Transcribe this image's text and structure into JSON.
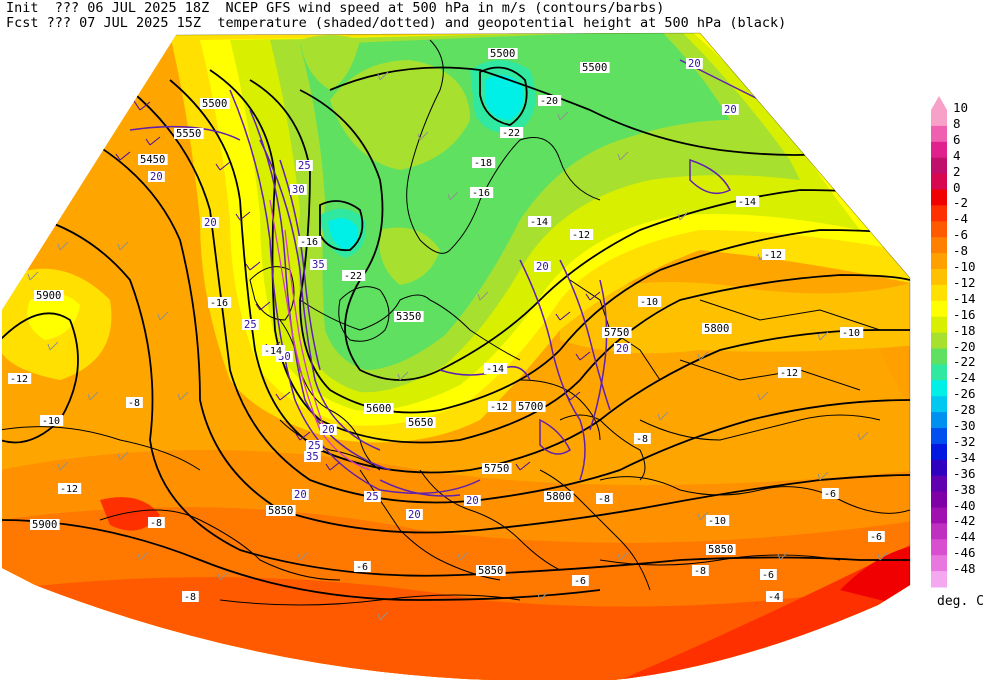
{
  "header": {
    "line1": "Init  ??? 06 JUL 2025 18Z  NCEP GFS wind speed at 500 hPa in m/s (contours/barbs)",
    "line2": "Fcst ??? 07 JUL 2025 15Z  temperature (shaded/dotted) and geopotential height at 500 hPa (black)"
  },
  "colorbar": {
    "units": "deg. C",
    "levels": [
      {
        "label": "10",
        "color": "#f7a0c8"
      },
      {
        "label": "8",
        "color": "#f060b0"
      },
      {
        "label": "6",
        "color": "#e0208c"
      },
      {
        "label": "4",
        "color": "#c0106c"
      },
      {
        "label": "2",
        "color": "#d80850"
      },
      {
        "label": "0",
        "color": "#f00000"
      },
      {
        "label": "-2",
        "color": "#ff3000"
      },
      {
        "label": "-4",
        "color": "#ff5a00"
      },
      {
        "label": "-6",
        "color": "#ff8000"
      },
      {
        "label": "-8",
        "color": "#ffa000"
      },
      {
        "label": "-10",
        "color": "#ffc000"
      },
      {
        "label": "-12",
        "color": "#ffe000"
      },
      {
        "label": "-14",
        "color": "#ffff00"
      },
      {
        "label": "-16",
        "color": "#d8f000"
      },
      {
        "label": "-18",
        "color": "#a8e030"
      },
      {
        "label": "-20",
        "color": "#60e060"
      },
      {
        "label": "-22",
        "color": "#30e8a0"
      },
      {
        "label": "-24",
        "color": "#00f0e8"
      },
      {
        "label": "-26",
        "color": "#00c8f0"
      },
      {
        "label": "-28",
        "color": "#0090f0"
      },
      {
        "label": "-30",
        "color": "#0050f0"
      },
      {
        "label": "-32",
        "color": "#0018e0"
      },
      {
        "label": "-34",
        "color": "#3000c0"
      },
      {
        "label": "-36",
        "color": "#6000b0"
      },
      {
        "label": "-38",
        "color": "#8000a8"
      },
      {
        "label": "-40",
        "color": "#a010b0"
      },
      {
        "label": "-42",
        "color": "#c030c0"
      },
      {
        "label": "-44",
        "color": "#d850d0"
      },
      {
        "label": "-46",
        "color": "#e878e0"
      },
      {
        "label": "-48",
        "color": "#f4a8f0"
      }
    ]
  },
  "map_labels": {
    "heights": [
      "5500",
      "5500",
      "5500",
      "5450",
      "5550",
      "5900",
      "5350",
      "5600",
      "5650",
      "5700",
      "5750",
      "5750",
      "5800",
      "5800",
      "5850",
      "5850",
      "5850",
      "5900"
    ],
    "winds": [
      "20",
      "20",
      "20",
      "25",
      "30",
      "35",
      "25",
      "30",
      "25",
      "35",
      "20",
      "25",
      "20",
      "20",
      "20",
      "20",
      "20",
      "20"
    ],
    "temps": [
      "-20",
      "-22",
      "-18",
      "-16",
      "-14",
      "-12",
      "-14",
      "-12",
      "-10",
      "-12",
      "-10",
      "-16",
      "-14",
      "-12",
      "-8",
      "-10",
      "-12",
      "-8",
      "-6",
      "-8",
      "-6",
      "-8",
      "-6",
      "-6",
      "-4",
      "-6",
      "-8",
      "-10",
      "-8",
      "-14",
      "-12",
      "-16",
      "-22"
    ]
  }
}
